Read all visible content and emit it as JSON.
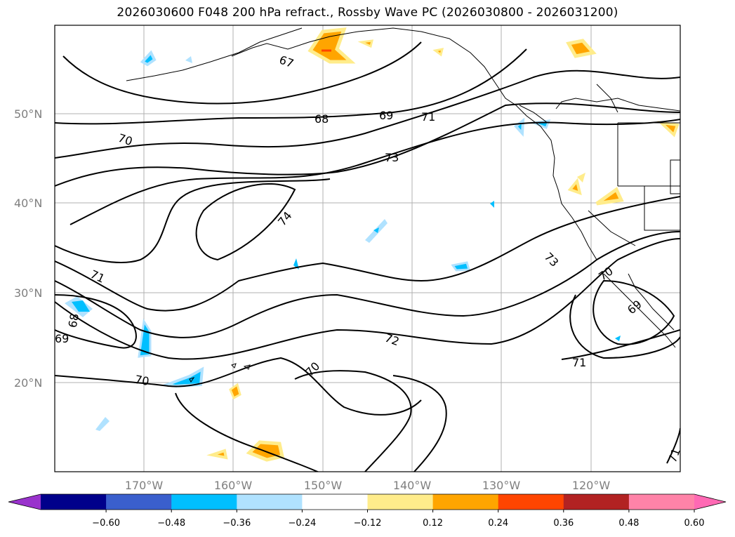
{
  "title": "2026030600 F048 200 hPa refract., Rossby Wave PC (2026030800 - 2026031200)",
  "map": {
    "latitude_labels": [
      "50°N",
      "40°N",
      "30°N",
      "20°N"
    ],
    "longitude_labels": [
      "170°W",
      "160°W",
      "150°W",
      "140°W",
      "130°W",
      "120°W"
    ],
    "contour_labels": [
      "67",
      "68",
      "69",
      "71",
      "70",
      "73",
      "74",
      "71",
      "68",
      "69",
      "72",
      "70",
      "70",
      "73",
      "70",
      "69",
      "71",
      "71"
    ]
  },
  "colorbar": {
    "ticks": [
      "−0.60",
      "−0.48",
      "−0.36",
      "−0.24",
      "−0.12",
      "0.12",
      "0.24",
      "0.36",
      "0.48",
      "0.60"
    ],
    "colors": [
      "#9932cc",
      "#00008b",
      "#3a5fcd",
      "#00bfff",
      "#b0e2ff",
      "#ffffff",
      "#ffec8b",
      "#ffa500",
      "#ff4500",
      "#b22222",
      "#ff83a8",
      "#ff69b4"
    ]
  }
}
